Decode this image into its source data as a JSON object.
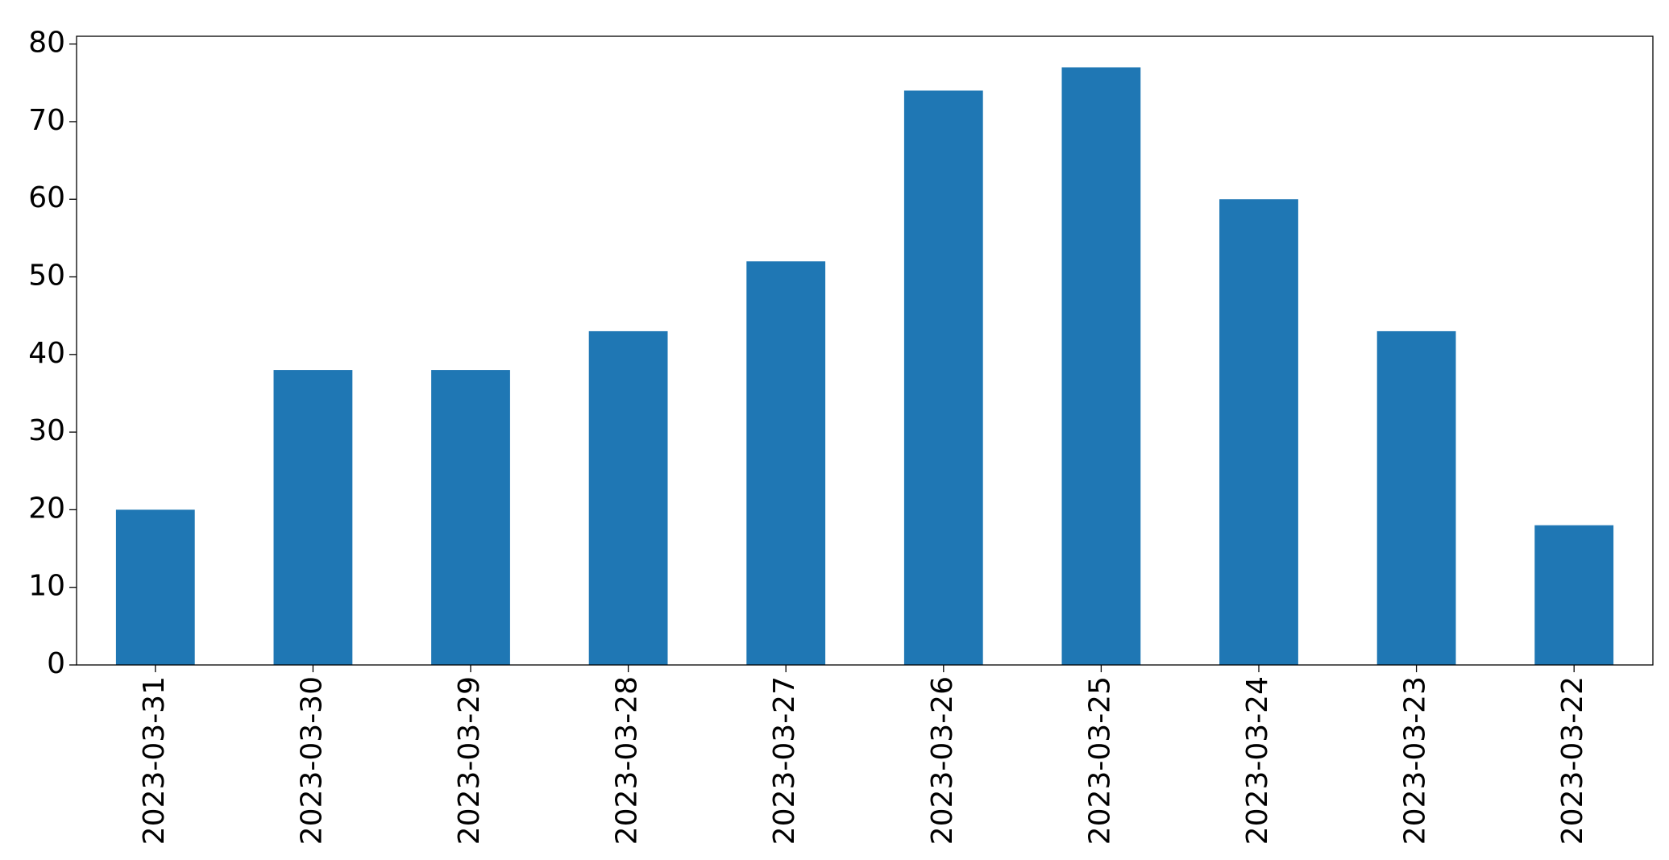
{
  "chart_data": {
    "type": "bar",
    "categories": [
      "2023-03-31",
      "2023-03-30",
      "2023-03-29",
      "2023-03-28",
      "2023-03-27",
      "2023-03-26",
      "2023-03-25",
      "2023-03-24",
      "2023-03-23",
      "2023-03-22"
    ],
    "values": [
      20,
      38,
      38,
      43,
      52,
      74,
      77,
      60,
      43,
      18
    ],
    "color": "#1f77b4",
    "ylim": [
      0,
      81
    ],
    "yticks": [
      0,
      10,
      20,
      30,
      40,
      50,
      60,
      70,
      80
    ],
    "grid": false
  }
}
